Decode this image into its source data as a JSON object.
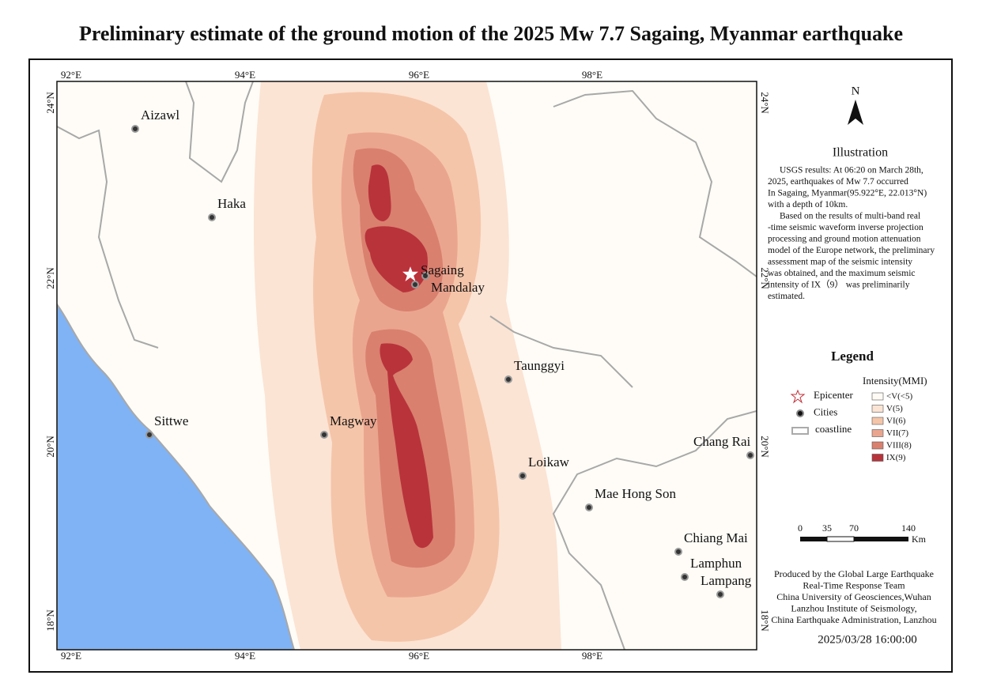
{
  "title": "Preliminary estimate of the ground motion of the 2025 Mw 7.7 Sagaing, Myanmar earthquake",
  "map": {
    "lon_labels": [
      "92°E",
      "94°E",
      "96°E",
      "98°E"
    ],
    "lat_labels": [
      "24°N",
      "22°N",
      "20°N",
      "18°N"
    ],
    "cities": [
      "Aizawl",
      "Haka",
      "Sittwe",
      "Magway",
      "Sagaing",
      "Mandalay",
      "Taunggyi",
      "Loikaw",
      "Mae Hong Son",
      "Chang Rai",
      "Chiang Mai",
      "Lamphun",
      "Lampang"
    ]
  },
  "sidebar": {
    "north": "N",
    "illustration": {
      "heading": "Illustration",
      "lines": [
        "USGS results: At 06:20 on March 28th,",
        "2025, earthquakes of Mw 7.7 occurred",
        "In Sagaing, Myanmar(95.922°E, 22.013°N)",
        "with a depth of 10km.",
        "Based on the results of multi-band real",
        "-time seismic waveform inverse projection",
        "processing and ground motion attenuation",
        "model of the Europe network, the preliminary",
        "assessment map of the seismic intensity",
        "was obtained, and the maximum seismic",
        "intensity of IX（9） was preliminarily",
        "estimated."
      ]
    },
    "legend": {
      "title": "Legend",
      "symbols": [
        "Epicenter",
        "Cities",
        "coastline"
      ],
      "intensity_title": "Intensity(MMI)",
      "classes": [
        {
          "label": "<V(<5)",
          "color": "#fffaf4"
        },
        {
          "label": "V(5)",
          "color": "#fbe4d4"
        },
        {
          "label": "VI(6)",
          "color": "#f5c5a9"
        },
        {
          "label": "VII(7)",
          "color": "#eaa58f"
        },
        {
          "label": "VIII(8)",
          "color": "#d9806f"
        },
        {
          "label": "IX(9)",
          "color": "#b9333b"
        }
      ]
    },
    "scale": {
      "ticks": [
        "0",
        "35",
        "70",
        "140"
      ],
      "unit": "Km"
    },
    "credits": [
      "Produced by the Global Large Earthquake",
      "Real-Time Response Team",
      "China University of Geosciences,Wuhan",
      "Lanzhou Institute of Seismology,",
      "China Earthquake Administration, Lanzhou"
    ],
    "timestamp": "2025/03/28 16:00:00"
  }
}
